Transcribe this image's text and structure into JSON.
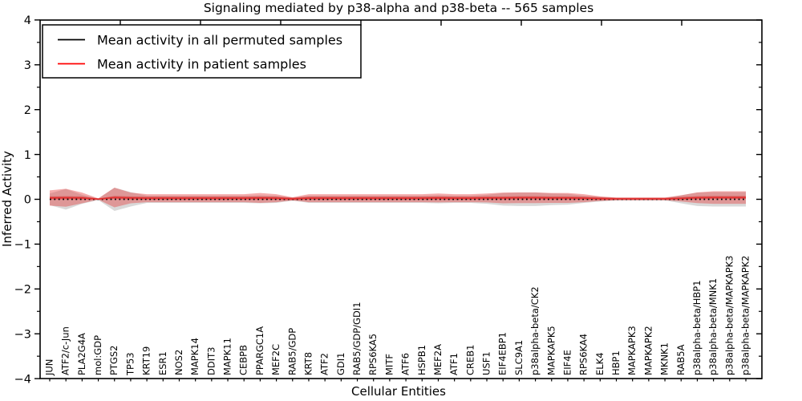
{
  "title": "Signaling mediated by p38-alpha and p38-beta -- 565 samples",
  "axes": {
    "xlabel": "Cellular Entities",
    "ylabel": "Inferred Activity",
    "ylim": [
      -4,
      4
    ],
    "yticks": [
      {
        "label": "4",
        "value": 4
      },
      {
        "label": "3",
        "value": 3
      },
      {
        "label": "2",
        "value": 2
      },
      {
        "label": "1",
        "value": 1
      },
      {
        "label": "0",
        "value": 0
      },
      {
        "label": "−1",
        "value": -1
      },
      {
        "label": "−2",
        "value": -2
      },
      {
        "label": "−3",
        "value": -3
      },
      {
        "label": "−4",
        "value": -4
      }
    ],
    "yminor": [
      -3.5,
      -2.5,
      -1.5,
      -0.5,
      0.5,
      1.5,
      2.5,
      3.5
    ]
  },
  "legend": {
    "entries": [
      {
        "label": "Mean activity in all permuted samples",
        "color": "#000000"
      },
      {
        "label": "Mean activity in patient samples",
        "color": "#ff0000"
      }
    ]
  },
  "colors": {
    "frame": "#000000",
    "permuted_line": "#000000",
    "patient_line": "#e53030",
    "permuted_band": "rgba(130,130,130,0.30)",
    "patient_band": "rgba(228,60,60,0.42)",
    "patient_band_inner": "rgba(205,35,35,0.45)"
  },
  "chart_data": {
    "type": "line",
    "title": "Signaling mediated by p38-alpha and p38-beta -- 565 samples",
    "xlabel": "Cellular Entities",
    "ylabel": "Inferred Activity",
    "ylim": [
      -4,
      4
    ],
    "grid": false,
    "legend_position": "upper left",
    "categories": [
      "JUN",
      "ATF2/c-Jun",
      "PLA2G4A",
      "mol:GDP",
      "PTGS2",
      "TP53",
      "KRT19",
      "ESR1",
      "NOS2",
      "MAPK14",
      "DDIT3",
      "MAPK11",
      "CEBPB",
      "PPARGC1A",
      "MEF2C",
      "RAB5/GDP",
      "KRT8",
      "ATF2",
      "GDI1",
      "RAB5/GDP/GDI1",
      "RPS6KA5",
      "MITF",
      "ATF6",
      "HSPB1",
      "MEF2A",
      "ATF1",
      "CREB1",
      "USF1",
      "EIF4EBP1",
      "SLC9A1",
      "p38alpha-beta/CK2",
      "MAPKAPK5",
      "EIF4E",
      "RPS6KA4",
      "ELK4",
      "HBP1",
      "MAPKAPK3",
      "MAPKAPK2",
      "MKNK1",
      "RAB5A",
      "p38alpha-beta/HBP1",
      "p38alpha-beta/MNK1",
      "p38alpha-beta/MAPKAPK3",
      "p38alpha-beta/MAPKAPK2"
    ],
    "series": [
      {
        "name": "Permuted samples band (approx. ± spread)",
        "type": "band",
        "color": "rgba(130,130,130,0.30)",
        "centers": 0,
        "half_widths": [
          0.13,
          0.23,
          0.1,
          0.015,
          0.26,
          0.16,
          0.08,
          0.08,
          0.08,
          0.08,
          0.08,
          0.08,
          0.08,
          0.09,
          0.08,
          0.03,
          0.08,
          0.08,
          0.08,
          0.08,
          0.08,
          0.08,
          0.08,
          0.08,
          0.09,
          0.08,
          0.08,
          0.1,
          0.14,
          0.15,
          0.15,
          0.13,
          0.12,
          0.08,
          0.05,
          0.025,
          0.025,
          0.025,
          0.025,
          0.09,
          0.15,
          0.16,
          0.16,
          0.16
        ]
      },
      {
        "name": "Patient samples band (approx. ± spread)",
        "type": "band",
        "color": "rgba(228,60,60,0.42)",
        "centers": [
          0.03,
          0.035,
          0.03,
          0.005,
          0.04,
          0.03,
          0.025,
          0.025,
          0.025,
          0.025,
          0.025,
          0.025,
          0.025,
          0.03,
          0.025,
          0.01,
          0.025,
          0.025,
          0.025,
          0.025,
          0.025,
          0.025,
          0.025,
          0.025,
          0.03,
          0.025,
          0.025,
          0.03,
          0.03,
          0.035,
          0.035,
          0.03,
          0.03,
          0.025,
          0.015,
          0.01,
          0.01,
          0.01,
          0.01,
          0.02,
          0.035,
          0.04,
          0.04,
          0.04
        ],
        "half_widths": [
          0.17,
          0.2,
          0.12,
          0.015,
          0.22,
          0.12,
          0.09,
          0.09,
          0.09,
          0.09,
          0.09,
          0.09,
          0.09,
          0.11,
          0.09,
          0.035,
          0.09,
          0.09,
          0.09,
          0.09,
          0.09,
          0.09,
          0.09,
          0.09,
          0.1,
          0.09,
          0.09,
          0.1,
          0.12,
          0.12,
          0.12,
          0.11,
          0.11,
          0.09,
          0.05,
          0.03,
          0.03,
          0.03,
          0.03,
          0.07,
          0.12,
          0.14,
          0.14,
          0.14
        ]
      },
      {
        "name": "Patient samples inner band",
        "type": "band",
        "color": "rgba(205,35,35,0.45)",
        "centers": [
          0.03,
          0.035,
          0.03,
          0.005,
          0.04,
          0.03,
          0.025,
          0.025,
          0.025,
          0.025,
          0.025,
          0.025,
          0.025,
          0.03,
          0.025,
          0.01,
          0.025,
          0.025,
          0.025,
          0.025,
          0.025,
          0.025,
          0.025,
          0.025,
          0.03,
          0.025,
          0.025,
          0.03,
          0.03,
          0.035,
          0.035,
          0.03,
          0.03,
          0.025,
          0.015,
          0.01,
          0.01,
          0.01,
          0.01,
          0.02,
          0.035,
          0.04,
          0.04,
          0.04
        ],
        "half_widths": [
          0.034,
          0.034,
          0.034,
          0.013,
          0.034,
          0.034,
          0.034,
          0.034,
          0.034,
          0.034,
          0.034,
          0.034,
          0.034,
          0.034,
          0.034,
          0.03,
          0.034,
          0.034,
          0.034,
          0.034,
          0.034,
          0.034,
          0.034,
          0.034,
          0.034,
          0.034,
          0.034,
          0.034,
          0.034,
          0.034,
          0.034,
          0.034,
          0.034,
          0.034,
          0.034,
          0.026,
          0.026,
          0.026,
          0.026,
          0.034,
          0.034,
          0.034,
          0.034,
          0.034
        ]
      },
      {
        "name": "Mean activity in all permuted samples",
        "type": "line",
        "style": "dashed",
        "color": "#000000",
        "values": [
          0,
          0,
          0,
          0,
          0,
          0,
          0,
          0,
          0,
          0,
          0,
          0,
          0,
          0,
          0,
          0,
          0,
          0,
          0,
          0,
          0,
          0,
          0,
          0,
          0,
          0,
          0,
          0,
          0,
          0,
          0,
          0,
          0,
          0,
          0,
          0,
          0,
          0,
          0,
          0,
          0,
          0,
          0,
          0
        ]
      },
      {
        "name": "Mean activity in patient samples",
        "type": "line",
        "style": "solid",
        "color": "#e53030",
        "values": [
          0.03,
          0.035,
          0.03,
          0.005,
          0.04,
          0.03,
          0.025,
          0.025,
          0.025,
          0.025,
          0.025,
          0.025,
          0.025,
          0.03,
          0.025,
          0.01,
          0.025,
          0.025,
          0.025,
          0.025,
          0.025,
          0.025,
          0.025,
          0.025,
          0.03,
          0.025,
          0.025,
          0.03,
          0.03,
          0.035,
          0.035,
          0.03,
          0.03,
          0.025,
          0.015,
          0.01,
          0.01,
          0.01,
          0.01,
          0.02,
          0.035,
          0.04,
          0.04,
          0.04
        ]
      }
    ]
  }
}
